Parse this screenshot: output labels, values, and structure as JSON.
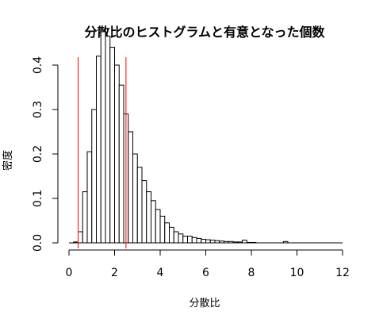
{
  "chart_data": {
    "type": "histogram",
    "title": "分散比のヒストグラムと有意となった個数",
    "xlabel": "分散比",
    "ylabel": "密度",
    "xlim": [
      0,
      12
    ],
    "ylim": [
      0,
      0.5
    ],
    "xticks": [
      "0",
      "2",
      "4",
      "6",
      "8",
      "10",
      "12"
    ],
    "yticks": [
      "0.0",
      "0.1",
      "0.2",
      "0.3",
      "0.4"
    ],
    "bin_width": 0.2,
    "bins_start": 0.2,
    "densities": [
      0.002,
      0.025,
      0.115,
      0.205,
      0.3,
      0.42,
      0.475,
      0.465,
      0.44,
      0.4,
      0.355,
      0.29,
      0.25,
      0.2,
      0.17,
      0.14,
      0.115,
      0.095,
      0.075,
      0.06,
      0.045,
      0.035,
      0.025,
      0.02,
      0.015,
      0.015,
      0.012,
      0.01,
      0.008,
      0.007,
      0.006,
      0.005,
      0.004,
      0.003,
      0.003,
      0.002,
      0.002,
      0.006,
      0.001,
      0.001,
      0.0,
      0.0,
      0.0,
      0.0,
      0.0,
      0.0,
      0.003
    ],
    "critical_lines": [
      0.4,
      2.5
    ],
    "critical_line_color": "#ff0000",
    "grid": false
  }
}
